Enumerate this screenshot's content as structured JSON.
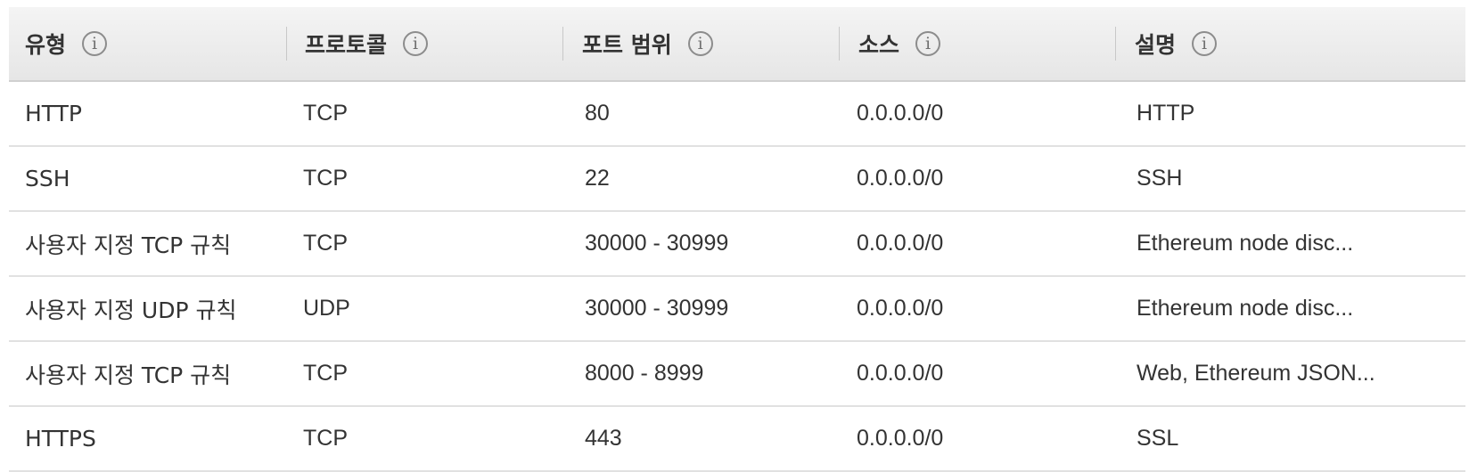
{
  "headers": [
    {
      "label": "유형"
    },
    {
      "label": "프로토콜"
    },
    {
      "label": "포트 범위"
    },
    {
      "label": "소스"
    },
    {
      "label": "설명"
    }
  ],
  "info_glyph": "i",
  "rows": [
    [
      "HTTP",
      "TCP",
      "80",
      "0.0.0.0/0",
      "HTTP"
    ],
    [
      "SSH",
      "TCP",
      "22",
      "0.0.0.0/0",
      "SSH"
    ],
    [
      "사용자 지정 TCP 규칙",
      "TCP",
      "30000 - 30999",
      "0.0.0.0/0",
      "Ethereum node disc..."
    ],
    [
      "사용자 지정 UDP 규칙",
      "UDP",
      "30000 - 30999",
      "0.0.0.0/0",
      "Ethereum node disc..."
    ],
    [
      "사용자 지정 TCP 규칙",
      "TCP",
      "8000 - 8999",
      "0.0.0.0/0",
      "Web, Ethereum JSON..."
    ],
    [
      "HTTPS",
      "TCP",
      "443",
      "0.0.0.0/0",
      "SSL"
    ]
  ]
}
